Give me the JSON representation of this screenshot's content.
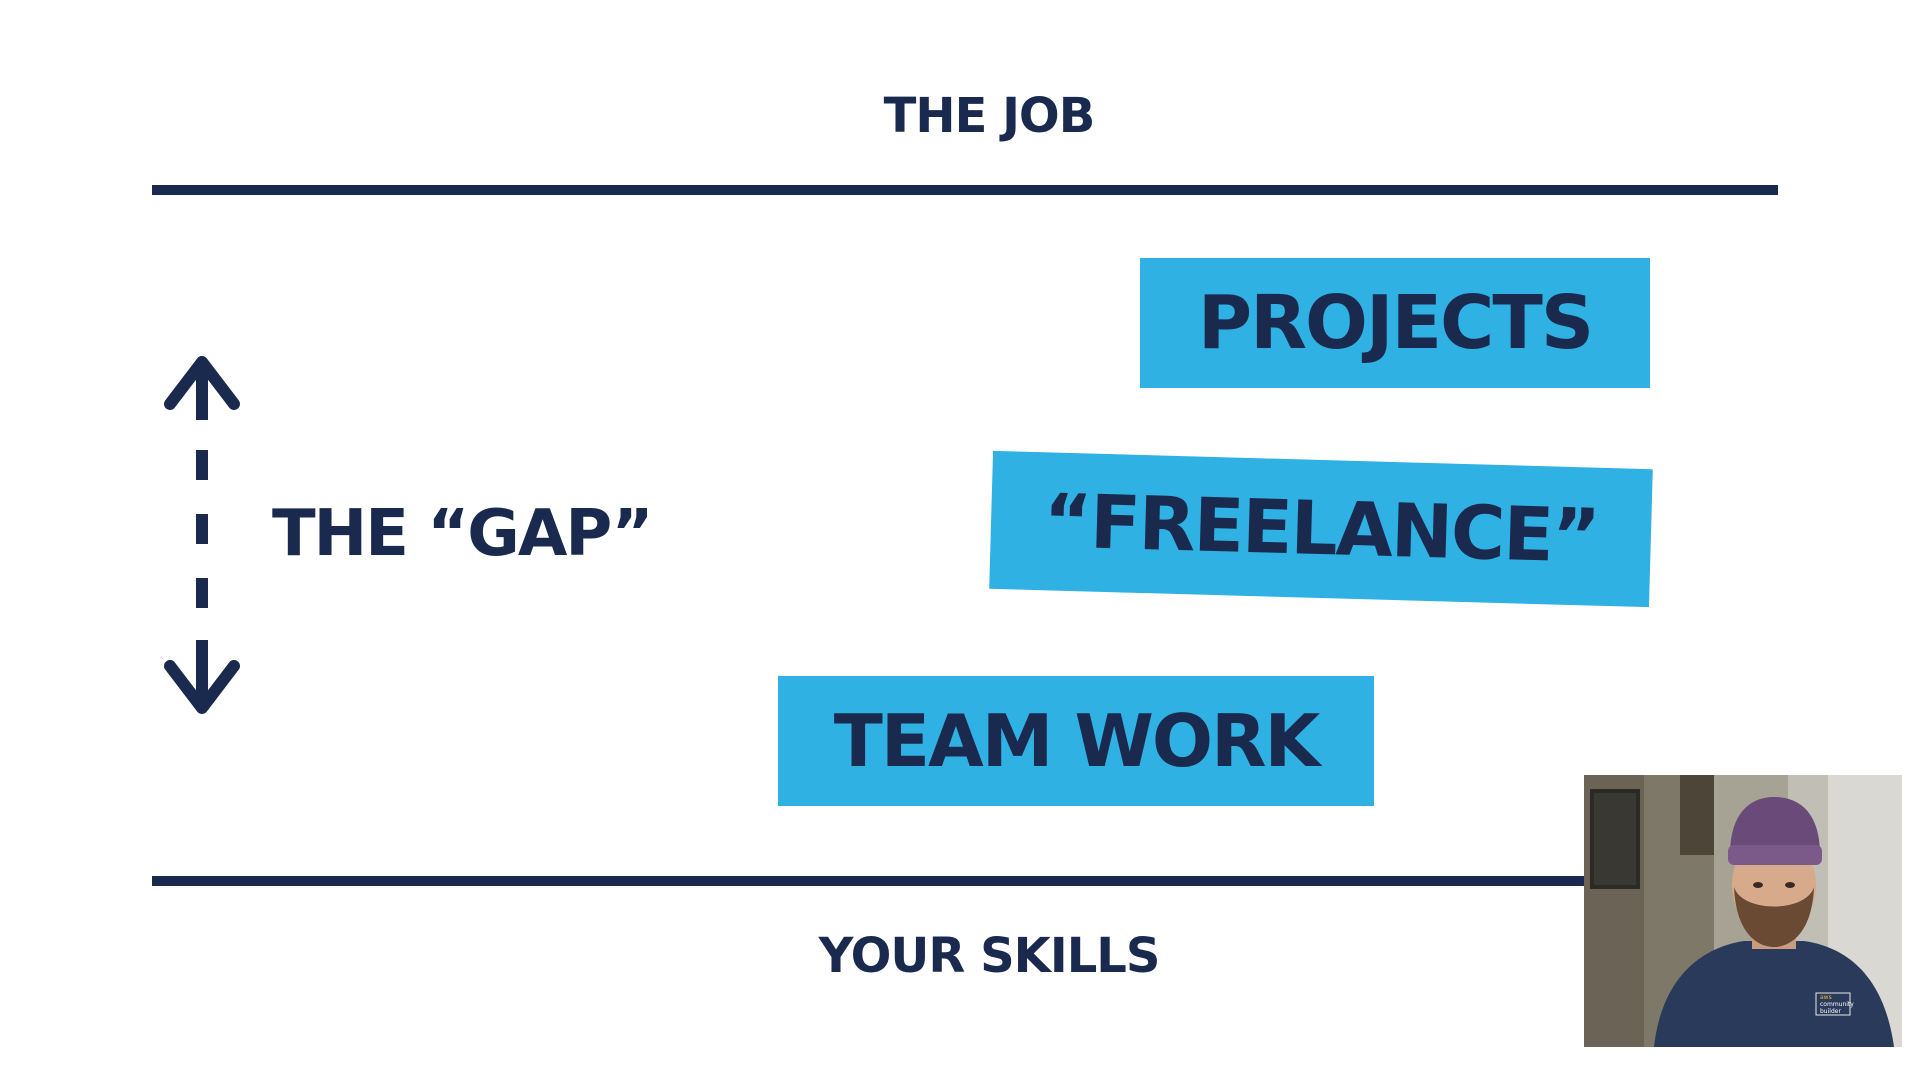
{
  "slide": {
    "top_label": "THE JOB",
    "bottom_label": "YOUR SKILLS",
    "gap_label": "THE “GAP”",
    "tags": {
      "projects": "PROJECTS",
      "freelance": "“FREELANCE”",
      "teamwork": "TEAM WORK"
    }
  },
  "webcam": {
    "shirt_text_1": "aws",
    "shirt_text_2": "community",
    "shirt_text_3": "builder"
  },
  "colors": {
    "navy": "#1a2a4f",
    "tag_blue": "#2fb1e3",
    "background": "#ffffff"
  },
  "icons": [
    "up-arrow-icon",
    "down-arrow-icon"
  ]
}
